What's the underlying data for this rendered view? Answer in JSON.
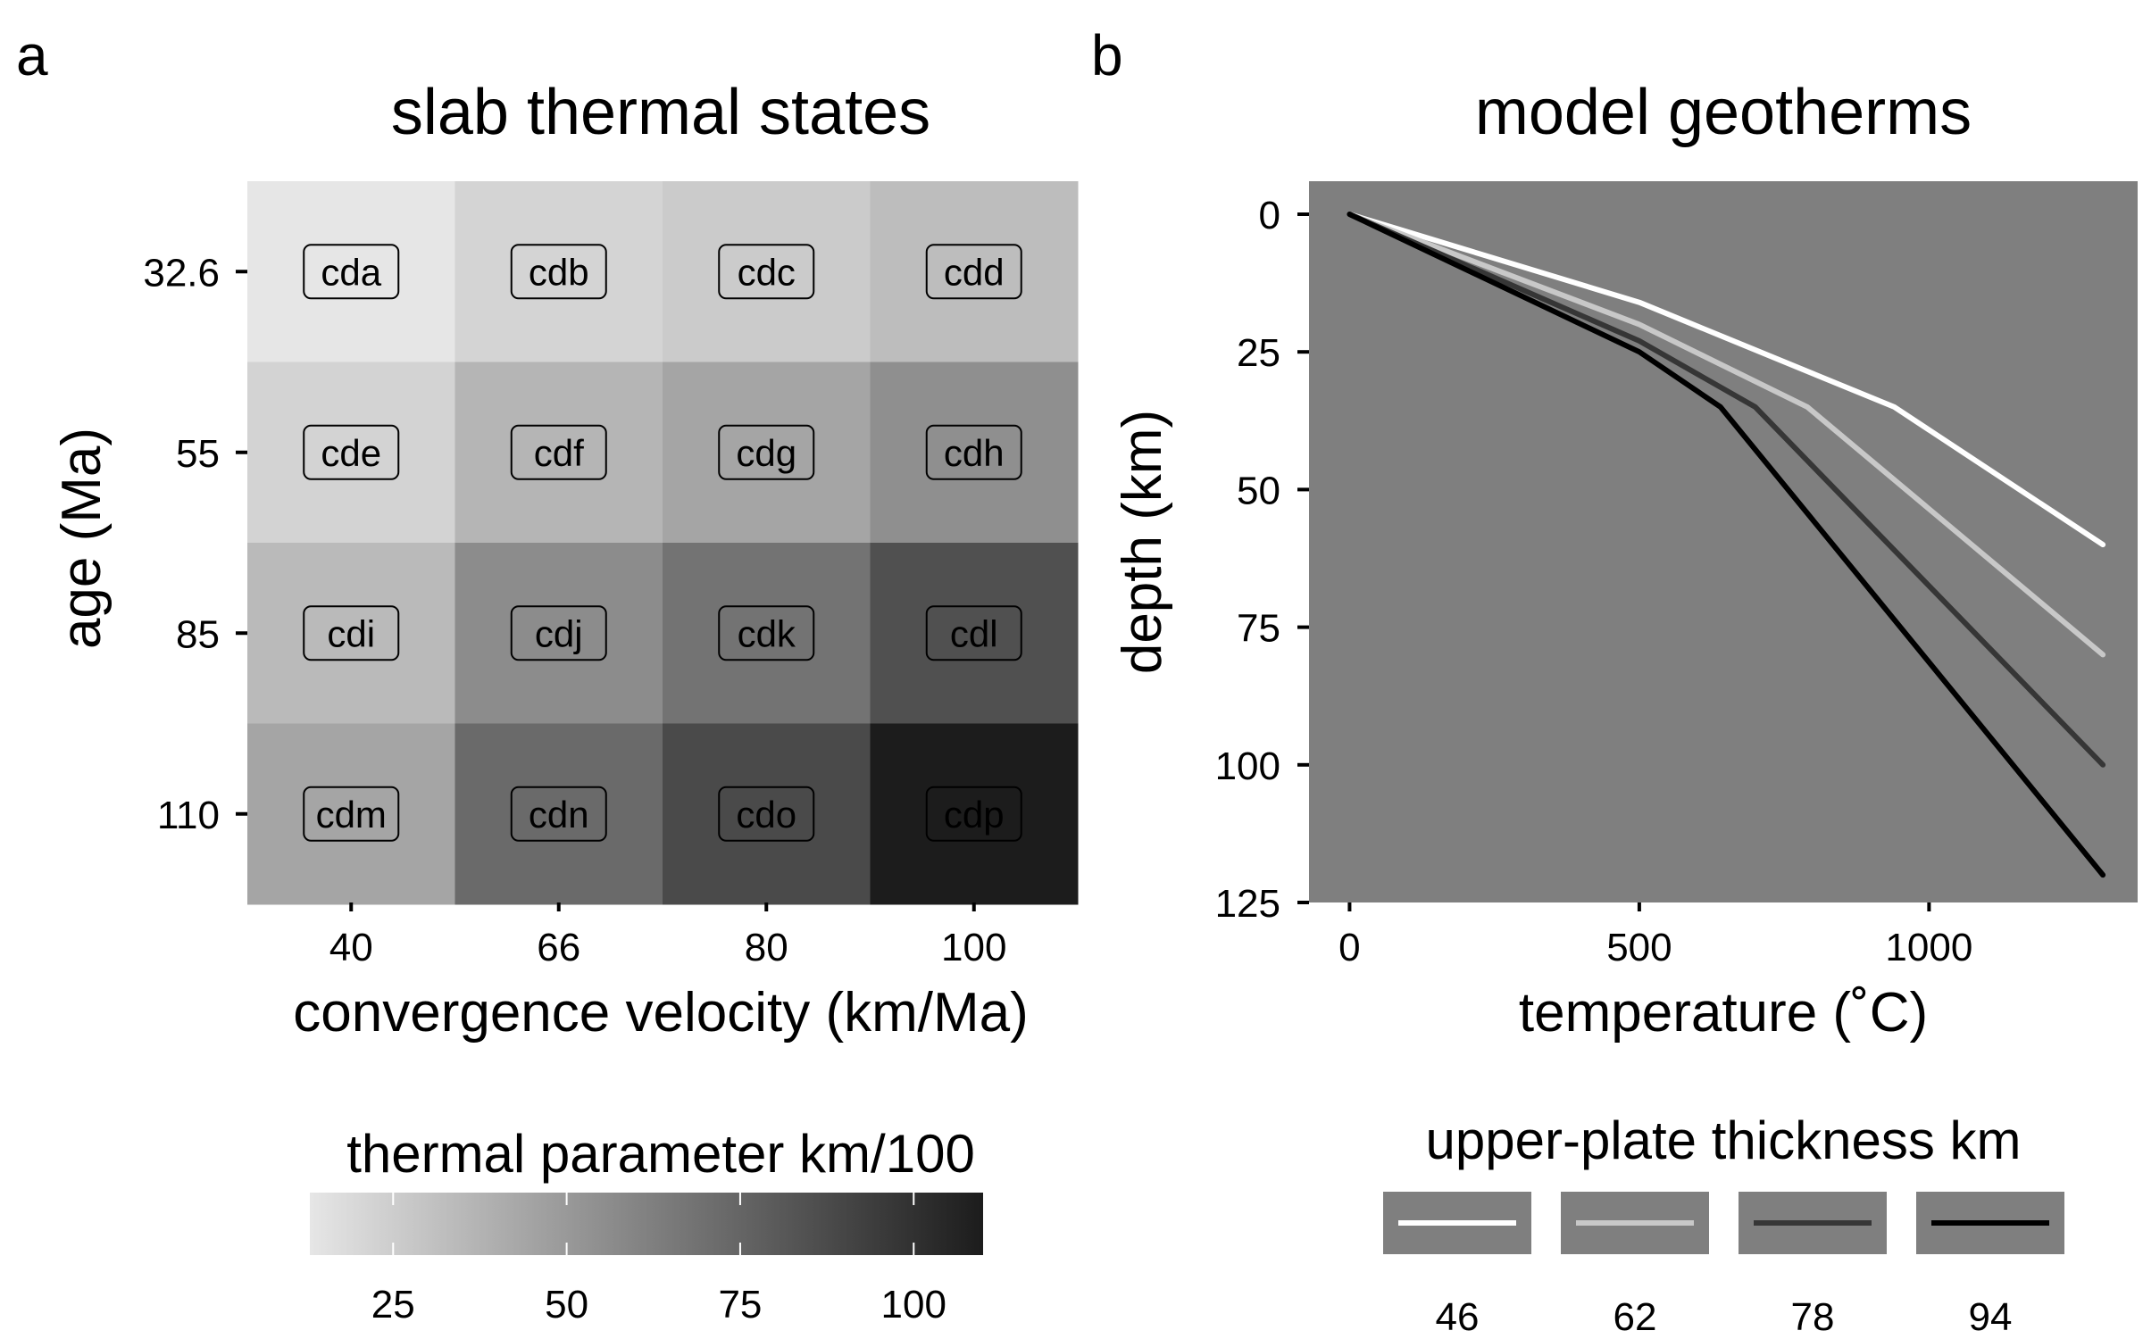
{
  "chart_data": [
    {
      "panel": "a",
      "type": "heatmap",
      "title": "slab thermal states",
      "xlabel": "convergence velocity (km/Ma)",
      "ylabel": "age (Ma)",
      "x_categories": [
        "40",
        "66",
        "80",
        "100"
      ],
      "y_categories": [
        "32.6",
        "55",
        "85",
        "110"
      ],
      "cells": [
        {
          "label": "cda",
          "age": "32.6",
          "velocity": "40",
          "value": 13.0
        },
        {
          "label": "cdb",
          "age": "32.6",
          "velocity": "66",
          "value": 21.5
        },
        {
          "label": "cdc",
          "age": "32.6",
          "velocity": "80",
          "value": 26.1
        },
        {
          "label": "cdd",
          "age": "32.6",
          "velocity": "100",
          "value": 32.6
        },
        {
          "label": "cde",
          "age": "55",
          "velocity": "40",
          "value": 22.0
        },
        {
          "label": "cdf",
          "age": "55",
          "velocity": "66",
          "value": 36.3
        },
        {
          "label": "cdg",
          "age": "55",
          "velocity": "80",
          "value": 44.0
        },
        {
          "label": "cdh",
          "age": "55",
          "velocity": "100",
          "value": 55.0
        },
        {
          "label": "cdi",
          "age": "85",
          "velocity": "40",
          "value": 34.0
        },
        {
          "label": "cdj",
          "age": "85",
          "velocity": "66",
          "value": 56.1
        },
        {
          "label": "cdk",
          "age": "85",
          "velocity": "80",
          "value": 68.0
        },
        {
          "label": "cdl",
          "age": "85",
          "velocity": "100",
          "value": 85.0
        },
        {
          "label": "cdm",
          "age": "110",
          "velocity": "40",
          "value": 44.0
        },
        {
          "label": "cdn",
          "age": "110",
          "velocity": "66",
          "value": 72.6
        },
        {
          "label": "cdo",
          "age": "110",
          "velocity": "80",
          "value": 88.0
        },
        {
          "label": "cdp",
          "age": "110",
          "velocity": "100",
          "value": 110.0
        }
      ],
      "colorbar": {
        "title": "thermal parameter km/100",
        "range": [
          13,
          110
        ],
        "ticks": [
          "25",
          "50",
          "75",
          "100"
        ],
        "tick_values": [
          25,
          50,
          75,
          100
        ],
        "color_low": "#e6e6e6",
        "color_high": "#1c1c1c"
      },
      "legend_placement": "bottom"
    },
    {
      "panel": "b",
      "type": "line",
      "title": "model geotherms",
      "xlabel": "temperature (˚C)",
      "ylabel": "depth (km)",
      "xlim": [
        -70,
        1360
      ],
      "ylim": [
        125,
        -6
      ],
      "x_ticks": [
        "0",
        "500",
        "1000"
      ],
      "x_tick_values": [
        0,
        500,
        1000
      ],
      "y_ticks": [
        "0",
        "25",
        "50",
        "75",
        "100",
        "125"
      ],
      "y_tick_values": [
        0,
        25,
        50,
        75,
        100,
        125
      ],
      "background": "#7f7f7f",
      "grid": false,
      "legend_title": "upper-plate thickness km",
      "legend_placement": "bottom",
      "series": [
        {
          "name": "46",
          "color": "#ffffff",
          "points": [
            [
              0,
              0
            ],
            [
              500,
              16
            ],
            [
              940,
              35
            ],
            [
              1300,
              60
            ]
          ]
        },
        {
          "name": "62",
          "color": "#c8c8c8",
          "points": [
            [
              0,
              0
            ],
            [
              500,
              20
            ],
            [
              790,
              35
            ],
            [
              1300,
              80
            ]
          ]
        },
        {
          "name": "78",
          "color": "#363636",
          "points": [
            [
              0,
              0
            ],
            [
              500,
              23
            ],
            [
              700,
              35
            ],
            [
              1300,
              100
            ]
          ]
        },
        {
          "name": "94",
          "color": "#000000",
          "points": [
            [
              0,
              0
            ],
            [
              500,
              25
            ],
            [
              640,
              35
            ],
            [
              1300,
              120
            ]
          ]
        }
      ]
    }
  ]
}
